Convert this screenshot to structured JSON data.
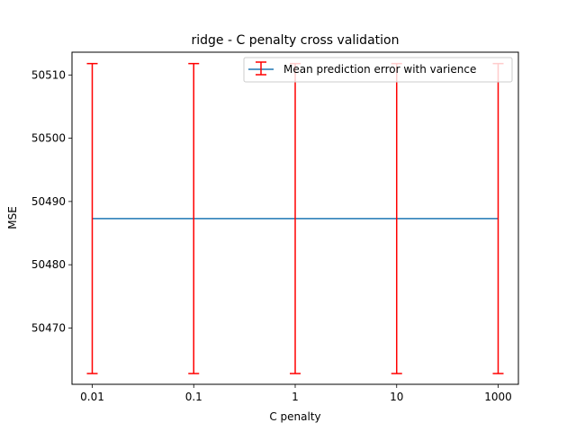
{
  "chart_data": {
    "type": "line",
    "title": "ridge - C penalty cross validation",
    "xlabel": "C penalty",
    "ylabel": "MSE",
    "categories": [
      "0.01",
      "0.1",
      "1",
      "10",
      "1000"
    ],
    "series": [
      {
        "name": "Mean prediction error with varience",
        "values": [
          50487.3,
          50487.3,
          50487.3,
          50487.3,
          50487.3
        ],
        "error": [
          24.5,
          24.5,
          24.5,
          24.5,
          24.5
        ],
        "line_color": "#1f77b4",
        "error_color": "#ff0000"
      }
    ],
    "ylim": [
      50461.1,
      50513.6
    ],
    "yticks": [
      50470,
      50480,
      50490,
      50500,
      50510
    ],
    "grid": false,
    "legend_position": "upper right"
  }
}
